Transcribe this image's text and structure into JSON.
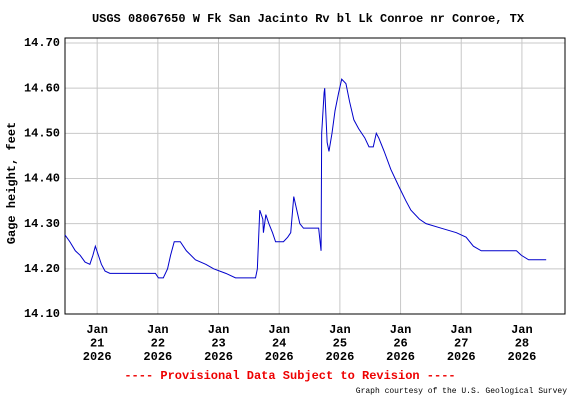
{
  "chart_data": {
    "type": "line",
    "title": "USGS 08067650 W Fk San Jacinto Rv bl Lk Conroe nr Conroe, TX",
    "y_label": "Gage height, feet",
    "notice": "---- Provisional Data Subject to Revision ----",
    "credit": "Graph courtesy of the U.S. Geological Survey",
    "grid": true,
    "xlim": [
      20.47,
      28.71
    ],
    "ylim": [
      14.1,
      14.711
    ],
    "xticks": [
      {
        "value": 21,
        "label": "Jan 21 2026"
      },
      {
        "value": 22,
        "label": "Jan 22 2026"
      },
      {
        "value": 23,
        "label": "Jan 23 2026"
      },
      {
        "value": 24,
        "label": "Jan 24 2026"
      },
      {
        "value": 25,
        "label": "Jan 25 2026"
      },
      {
        "value": 26,
        "label": "Jan 26 2026"
      },
      {
        "value": 27,
        "label": "Jan 27 2026"
      },
      {
        "value": 28,
        "label": "Jan 28 2026"
      }
    ],
    "yticks": [
      {
        "value": 14.1,
        "label": "14.10"
      },
      {
        "value": 14.2,
        "label": "14.20"
      },
      {
        "value": 14.3,
        "label": "14.30"
      },
      {
        "value": 14.4,
        "label": "14.40"
      },
      {
        "value": 14.5,
        "label": "14.50"
      },
      {
        "value": 14.6,
        "label": "14.60"
      },
      {
        "value": 14.7,
        "label": "14.70"
      }
    ],
    "series": [
      {
        "color": "#0000cc",
        "x": [
          20.47,
          20.55,
          20.64,
          20.72,
          20.8,
          20.88,
          20.93,
          20.97,
          21.02,
          21.07,
          21.13,
          21.21,
          21.55,
          21.96,
          22.01,
          22.09,
          22.16,
          22.21,
          22.27,
          22.37,
          22.47,
          22.62,
          22.79,
          22.92,
          23.12,
          23.28,
          23.61,
          23.64,
          23.68,
          23.73,
          23.74,
          23.78,
          23.83,
          23.89,
          23.94,
          24.07,
          24.14,
          24.19,
          24.24,
          24.29,
          24.34,
          24.4,
          24.65,
          24.69,
          24.7,
          24.74,
          24.75,
          24.79,
          24.82,
          24.87,
          24.92,
          24.98,
          25.03,
          25.1,
          25.16,
          25.23,
          25.31,
          25.41,
          25.48,
          25.55,
          25.6,
          25.64,
          25.73,
          25.84,
          25.98,
          26.09,
          26.17,
          26.31,
          26.42,
          26.67,
          26.92,
          27.08,
          27.2,
          27.33,
          27.91,
          27.99,
          28.11,
          28.4
        ],
        "values": [
          14.275,
          14.26,
          14.24,
          14.23,
          14.215,
          14.21,
          14.23,
          14.25,
          14.23,
          14.21,
          14.195,
          14.19,
          14.19,
          14.19,
          14.18,
          14.18,
          14.2,
          14.23,
          14.26,
          14.26,
          14.24,
          14.22,
          14.21,
          14.2,
          14.19,
          14.18,
          14.18,
          14.2,
          14.33,
          14.31,
          14.28,
          14.32,
          14.3,
          14.28,
          14.26,
          14.26,
          14.27,
          14.28,
          14.36,
          14.33,
          14.3,
          14.29,
          14.29,
          14.24,
          14.5,
          14.59,
          14.6,
          14.48,
          14.46,
          14.5,
          14.55,
          14.59,
          14.62,
          14.61,
          14.57,
          14.53,
          14.51,
          14.49,
          14.47,
          14.47,
          14.5,
          14.49,
          14.46,
          14.42,
          14.38,
          14.35,
          14.33,
          14.31,
          14.3,
          14.29,
          14.28,
          14.27,
          14.25,
          14.24,
          14.24,
          14.23,
          14.22,
          14.22
        ]
      }
    ]
  }
}
